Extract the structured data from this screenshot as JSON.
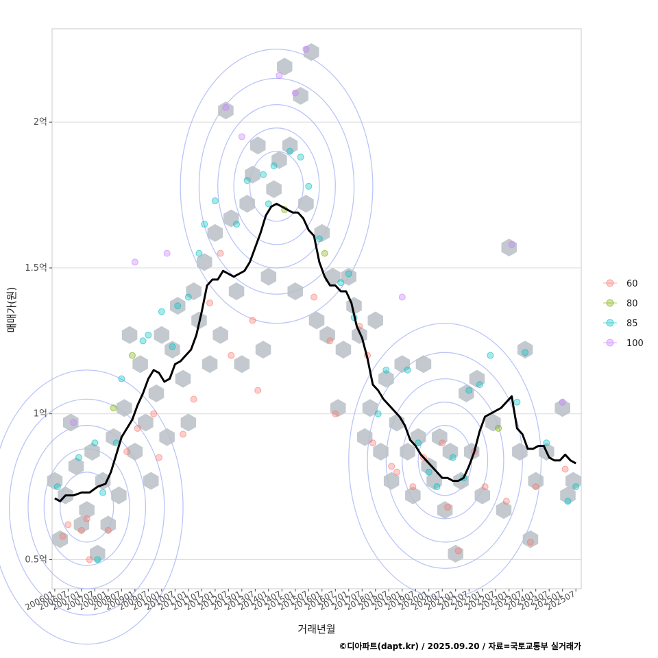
{
  "chart_data": {
    "type": "scatter",
    "xlabel": "거래년월",
    "ylabel": "매매가(원)",
    "caption": "©디아파트(dapt.kr) / 2025.09.20 / 자료=국토교통부 실거래가",
    "x_ticks": [
      "200601",
      "200607",
      "200701",
      "200707",
      "200801",
      "200807",
      "200901",
      "200907",
      "201001",
      "201007",
      "201101",
      "201107",
      "201201",
      "201207",
      "201301",
      "201307",
      "201401",
      "201407",
      "201501",
      "201507",
      "201601",
      "201607",
      "201701",
      "201707",
      "201801",
      "201807",
      "201901",
      "201907",
      "202001",
      "202007",
      "202101",
      "202107",
      "202201",
      "202207",
      "202301",
      "202307",
      "202401",
      "202407",
      "202501",
      "202507"
    ],
    "y_ticks": [
      {
        "value": 0.5,
        "label": "0.5억"
      },
      {
        "value": 1.0,
        "label": "1억"
      },
      {
        "value": 1.5,
        "label": "1.5억"
      },
      {
        "value": 2.0,
        "label": "2억"
      }
    ],
    "y_unit": "억원",
    "xlim": [
      2005.9,
      2025.7
    ],
    "ylim": [
      0.4,
      2.32
    ],
    "grid": true,
    "legend": {
      "position": "right",
      "entries": [
        {
          "label": "60",
          "color": "#F8766D"
        },
        {
          "label": "80",
          "color": "#7CAE00"
        },
        {
          "label": "85",
          "color": "#00BFC4"
        },
        {
          "label": "100",
          "color": "#C77CFF"
        }
      ]
    },
    "moving_average_line": {
      "color": "#000000",
      "points": [
        [
          2006.0,
          0.71
        ],
        [
          2006.2,
          0.7
        ],
        [
          2006.4,
          0.72
        ],
        [
          2006.7,
          0.72
        ],
        [
          2007.0,
          0.73
        ],
        [
          2007.3,
          0.73
        ],
        [
          2007.6,
          0.75
        ],
        [
          2007.9,
          0.76
        ],
        [
          2008.1,
          0.8
        ],
        [
          2008.3,
          0.86
        ],
        [
          2008.5,
          0.92
        ],
        [
          2008.7,
          0.95
        ],
        [
          2008.9,
          0.98
        ],
        [
          2009.1,
          1.03
        ],
        [
          2009.3,
          1.07
        ],
        [
          2009.5,
          1.12
        ],
        [
          2009.7,
          1.15
        ],
        [
          2009.9,
          1.14
        ],
        [
          2010.1,
          1.11
        ],
        [
          2010.3,
          1.12
        ],
        [
          2010.5,
          1.17
        ],
        [
          2010.7,
          1.18
        ],
        [
          2010.9,
          1.2
        ],
        [
          2011.1,
          1.22
        ],
        [
          2011.3,
          1.27
        ],
        [
          2011.5,
          1.35
        ],
        [
          2011.7,
          1.44
        ],
        [
          2011.9,
          1.46
        ],
        [
          2012.1,
          1.46
        ],
        [
          2012.3,
          1.49
        ],
        [
          2012.5,
          1.48
        ],
        [
          2012.7,
          1.47
        ],
        [
          2012.9,
          1.48
        ],
        [
          2013.1,
          1.49
        ],
        [
          2013.3,
          1.52
        ],
        [
          2013.5,
          1.57
        ],
        [
          2013.7,
          1.62
        ],
        [
          2013.9,
          1.68
        ],
        [
          2014.1,
          1.71
        ],
        [
          2014.3,
          1.72
        ],
        [
          2014.5,
          1.71
        ],
        [
          2014.7,
          1.7
        ],
        [
          2014.9,
          1.69
        ],
        [
          2015.1,
          1.69
        ],
        [
          2015.3,
          1.67
        ],
        [
          2015.5,
          1.63
        ],
        [
          2015.7,
          1.61
        ],
        [
          2015.9,
          1.52
        ],
        [
          2016.1,
          1.47
        ],
        [
          2016.3,
          1.44
        ],
        [
          2016.5,
          1.44
        ],
        [
          2016.7,
          1.42
        ],
        [
          2016.9,
          1.42
        ],
        [
          2017.1,
          1.38
        ],
        [
          2017.3,
          1.3
        ],
        [
          2017.5,
          1.26
        ],
        [
          2017.7,
          1.19
        ],
        [
          2017.9,
          1.1
        ],
        [
          2018.1,
          1.08
        ],
        [
          2018.3,
          1.05
        ],
        [
          2018.5,
          1.03
        ],
        [
          2018.7,
          1.01
        ],
        [
          2018.9,
          0.99
        ],
        [
          2019.1,
          0.96
        ],
        [
          2019.3,
          0.91
        ],
        [
          2019.5,
          0.89
        ],
        [
          2019.7,
          0.86
        ],
        [
          2019.9,
          0.84
        ],
        [
          2020.1,
          0.82
        ],
        [
          2020.3,
          0.8
        ],
        [
          2020.5,
          0.78
        ],
        [
          2020.7,
          0.78
        ],
        [
          2020.9,
          0.77
        ],
        [
          2021.1,
          0.77
        ],
        [
          2021.3,
          0.78
        ],
        [
          2021.5,
          0.82
        ],
        [
          2021.7,
          0.87
        ],
        [
          2021.9,
          0.94
        ],
        [
          2022.1,
          0.99
        ],
        [
          2022.3,
          1.0
        ],
        [
          2022.5,
          1.01
        ],
        [
          2022.7,
          1.02
        ],
        [
          2022.9,
          1.04
        ],
        [
          2023.1,
          1.06
        ],
        [
          2023.3,
          0.95
        ],
        [
          2023.5,
          0.93
        ],
        [
          2023.7,
          0.88
        ],
        [
          2023.9,
          0.88
        ],
        [
          2024.1,
          0.89
        ],
        [
          2024.3,
          0.89
        ],
        [
          2024.5,
          0.85
        ],
        [
          2024.7,
          0.84
        ],
        [
          2024.9,
          0.84
        ],
        [
          2025.1,
          0.86
        ],
        [
          2025.3,
          0.84
        ],
        [
          2025.5,
          0.83
        ]
      ]
    },
    "hexbin_centers": [
      [
        2006.0,
        0.77
      ],
      [
        2006.2,
        0.57
      ],
      [
        2006.4,
        0.72
      ],
      [
        2006.6,
        0.97
      ],
      [
        2006.8,
        0.82
      ],
      [
        2007.0,
        0.62
      ],
      [
        2007.2,
        0.67
      ],
      [
        2007.4,
        0.87
      ],
      [
        2007.6,
        0.52
      ],
      [
        2007.8,
        0.77
      ],
      [
        2008.0,
        0.62
      ],
      [
        2008.2,
        0.92
      ],
      [
        2008.4,
        0.72
      ],
      [
        2008.6,
        1.02
      ],
      [
        2008.8,
        1.27
      ],
      [
        2009.0,
        0.87
      ],
      [
        2009.2,
        1.17
      ],
      [
        2009.4,
        0.97
      ],
      [
        2009.6,
        0.77
      ],
      [
        2009.8,
        1.07
      ],
      [
        2010.0,
        1.27
      ],
      [
        2010.2,
        0.92
      ],
      [
        2010.4,
        1.22
      ],
      [
        2010.6,
        1.37
      ],
      [
        2010.8,
        1.12
      ],
      [
        2011.0,
        0.97
      ],
      [
        2011.2,
        1.42
      ],
      [
        2011.4,
        1.32
      ],
      [
        2011.6,
        1.52
      ],
      [
        2011.8,
        1.17
      ],
      [
        2012.0,
        1.62
      ],
      [
        2012.2,
        1.27
      ],
      [
        2012.4,
        2.04
      ],
      [
        2012.6,
        1.67
      ],
      [
        2012.8,
        1.42
      ],
      [
        2013.0,
        1.17
      ],
      [
        2013.2,
        1.72
      ],
      [
        2013.4,
        1.82
      ],
      [
        2013.6,
        1.92
      ],
      [
        2013.8,
        1.22
      ],
      [
        2014.0,
        1.47
      ],
      [
        2014.2,
        1.77
      ],
      [
        2014.4,
        1.87
      ],
      [
        2014.6,
        2.19
      ],
      [
        2014.8,
        1.92
      ],
      [
        2015.0,
        1.42
      ],
      [
        2015.2,
        2.09
      ],
      [
        2015.4,
        1.72
      ],
      [
        2015.6,
        2.24
      ],
      [
        2015.8,
        1.32
      ],
      [
        2016.0,
        1.62
      ],
      [
        2016.2,
        1.27
      ],
      [
        2016.4,
        1.47
      ],
      [
        2016.6,
        1.02
      ],
      [
        2016.8,
        1.22
      ],
      [
        2017.0,
        1.47
      ],
      [
        2017.2,
        1.37
      ],
      [
        2017.4,
        1.27
      ],
      [
        2017.6,
        0.92
      ],
      [
        2017.8,
        1.02
      ],
      [
        2018.0,
        1.32
      ],
      [
        2018.2,
        0.87
      ],
      [
        2018.4,
        1.12
      ],
      [
        2018.6,
        0.77
      ],
      [
        2018.8,
        0.97
      ],
      [
        2019.0,
        1.17
      ],
      [
        2019.2,
        0.87
      ],
      [
        2019.4,
        0.72
      ],
      [
        2019.6,
        0.92
      ],
      [
        2019.8,
        1.17
      ],
      [
        2020.0,
        0.82
      ],
      [
        2020.2,
        0.77
      ],
      [
        2020.4,
        0.92
      ],
      [
        2020.6,
        0.67
      ],
      [
        2020.8,
        0.87
      ],
      [
        2021.0,
        0.52
      ],
      [
        2021.2,
        0.77
      ],
      [
        2021.4,
        1.07
      ],
      [
        2021.6,
        0.87
      ],
      [
        2021.8,
        1.12
      ],
      [
        2022.0,
        0.72
      ],
      [
        2022.4,
        0.97
      ],
      [
        2022.8,
        0.67
      ],
      [
        2023.0,
        1.57
      ],
      [
        2023.4,
        0.87
      ],
      [
        2023.6,
        1.22
      ],
      [
        2023.8,
        0.57
      ],
      [
        2024.0,
        0.77
      ],
      [
        2024.4,
        0.87
      ],
      [
        2025.0,
        1.02
      ],
      [
        2025.2,
        0.72
      ],
      [
        2025.4,
        0.77
      ]
    ],
    "sample_points": [
      {
        "x": 2006.1,
        "y": 0.75,
        "g": "85"
      },
      {
        "x": 2006.3,
        "y": 0.58,
        "g": "60"
      },
      {
        "x": 2006.5,
        "y": 0.62,
        "g": "60"
      },
      {
        "x": 2006.7,
        "y": 0.97,
        "g": "100"
      },
      {
        "x": 2006.9,
        "y": 0.85,
        "g": "85"
      },
      {
        "x": 2007.0,
        "y": 0.6,
        "g": "60"
      },
      {
        "x": 2007.2,
        "y": 0.64,
        "g": "60"
      },
      {
        "x": 2007.3,
        "y": 0.5,
        "g": "60"
      },
      {
        "x": 2007.5,
        "y": 0.9,
        "g": "85"
      },
      {
        "x": 2007.6,
        "y": 0.5,
        "g": "85"
      },
      {
        "x": 2007.8,
        "y": 0.73,
        "g": "85"
      },
      {
        "x": 2008.0,
        "y": 0.6,
        "g": "60"
      },
      {
        "x": 2008.2,
        "y": 1.02,
        "g": "80"
      },
      {
        "x": 2008.3,
        "y": 0.9,
        "g": "85"
      },
      {
        "x": 2008.5,
        "y": 1.12,
        "g": "85"
      },
      {
        "x": 2008.7,
        "y": 0.87,
        "g": "60"
      },
      {
        "x": 2008.9,
        "y": 1.2,
        "g": "80"
      },
      {
        "x": 2009.0,
        "y": 1.52,
        "g": "100"
      },
      {
        "x": 2009.1,
        "y": 0.95,
        "g": "60"
      },
      {
        "x": 2009.3,
        "y": 1.25,
        "g": "85"
      },
      {
        "x": 2009.5,
        "y": 1.27,
        "g": "85"
      },
      {
        "x": 2009.7,
        "y": 1.0,
        "g": "60"
      },
      {
        "x": 2009.9,
        "y": 0.85,
        "g": "60"
      },
      {
        "x": 2010.0,
        "y": 1.35,
        "g": "85"
      },
      {
        "x": 2010.2,
        "y": 1.55,
        "g": "100"
      },
      {
        "x": 2010.4,
        "y": 1.23,
        "g": "85"
      },
      {
        "x": 2010.6,
        "y": 1.37,
        "g": "85"
      },
      {
        "x": 2010.8,
        "y": 0.93,
        "g": "60"
      },
      {
        "x": 2011.0,
        "y": 1.4,
        "g": "85"
      },
      {
        "x": 2011.2,
        "y": 1.05,
        "g": "60"
      },
      {
        "x": 2011.4,
        "y": 1.55,
        "g": "85"
      },
      {
        "x": 2011.6,
        "y": 1.65,
        "g": "85"
      },
      {
        "x": 2011.8,
        "y": 1.38,
        "g": "60"
      },
      {
        "x": 2012.0,
        "y": 1.73,
        "g": "85"
      },
      {
        "x": 2012.2,
        "y": 1.55,
        "g": "60"
      },
      {
        "x": 2012.4,
        "y": 2.05,
        "g": "100"
      },
      {
        "x": 2012.6,
        "y": 1.2,
        "g": "60"
      },
      {
        "x": 2012.8,
        "y": 1.65,
        "g": "85"
      },
      {
        "x": 2013.0,
        "y": 1.95,
        "g": "100"
      },
      {
        "x": 2013.2,
        "y": 1.8,
        "g": "85"
      },
      {
        "x": 2013.4,
        "y": 1.32,
        "g": "60"
      },
      {
        "x": 2013.6,
        "y": 1.08,
        "g": "60"
      },
      {
        "x": 2013.8,
        "y": 1.82,
        "g": "85"
      },
      {
        "x": 2014.0,
        "y": 1.72,
        "g": "85"
      },
      {
        "x": 2014.2,
        "y": 1.85,
        "g": "85"
      },
      {
        "x": 2014.4,
        "y": 2.16,
        "g": "100"
      },
      {
        "x": 2014.6,
        "y": 1.7,
        "g": "80"
      },
      {
        "x": 2014.8,
        "y": 1.9,
        "g": "85"
      },
      {
        "x": 2015.0,
        "y": 2.1,
        "g": "100"
      },
      {
        "x": 2015.2,
        "y": 1.88,
        "g": "85"
      },
      {
        "x": 2015.4,
        "y": 2.25,
        "g": "100"
      },
      {
        "x": 2015.5,
        "y": 1.78,
        "g": "85"
      },
      {
        "x": 2015.7,
        "y": 1.4,
        "g": "60"
      },
      {
        "x": 2015.9,
        "y": 1.6,
        "g": "85"
      },
      {
        "x": 2016.1,
        "y": 1.55,
        "g": "80"
      },
      {
        "x": 2016.3,
        "y": 1.25,
        "g": "60"
      },
      {
        "x": 2016.5,
        "y": 1.0,
        "g": "60"
      },
      {
        "x": 2016.7,
        "y": 1.45,
        "g": "85"
      },
      {
        "x": 2017.0,
        "y": 1.48,
        "g": "85"
      },
      {
        "x": 2017.2,
        "y": 1.33,
        "g": "85"
      },
      {
        "x": 2017.4,
        "y": 1.3,
        "g": "60"
      },
      {
        "x": 2017.7,
        "y": 1.2,
        "g": "60"
      },
      {
        "x": 2017.9,
        "y": 0.9,
        "g": "60"
      },
      {
        "x": 2018.1,
        "y": 1.0,
        "g": "85"
      },
      {
        "x": 2018.4,
        "y": 1.15,
        "g": "85"
      },
      {
        "x": 2018.6,
        "y": 0.82,
        "g": "60"
      },
      {
        "x": 2018.8,
        "y": 0.8,
        "g": "60"
      },
      {
        "x": 2019.0,
        "y": 1.4,
        "g": "100"
      },
      {
        "x": 2019.2,
        "y": 1.15,
        "g": "85"
      },
      {
        "x": 2019.4,
        "y": 0.75,
        "g": "60"
      },
      {
        "x": 2019.6,
        "y": 0.9,
        "g": "85"
      },
      {
        "x": 2019.8,
        "y": 0.85,
        "g": "60"
      },
      {
        "x": 2020.0,
        "y": 0.8,
        "g": "85"
      },
      {
        "x": 2020.3,
        "y": 0.75,
        "g": "85"
      },
      {
        "x": 2020.5,
        "y": 0.9,
        "g": "60"
      },
      {
        "x": 2020.7,
        "y": 0.68,
        "g": "60"
      },
      {
        "x": 2020.9,
        "y": 0.85,
        "g": "85"
      },
      {
        "x": 2021.1,
        "y": 0.53,
        "g": "60"
      },
      {
        "x": 2021.3,
        "y": 0.78,
        "g": "85"
      },
      {
        "x": 2021.5,
        "y": 1.08,
        "g": "85"
      },
      {
        "x": 2021.7,
        "y": 0.87,
        "g": "60"
      },
      {
        "x": 2021.9,
        "y": 1.1,
        "g": "85"
      },
      {
        "x": 2022.1,
        "y": 0.75,
        "g": "60"
      },
      {
        "x": 2022.3,
        "y": 1.2,
        "g": "85"
      },
      {
        "x": 2022.6,
        "y": 0.95,
        "g": "80"
      },
      {
        "x": 2022.9,
        "y": 0.7,
        "g": "60"
      },
      {
        "x": 2023.1,
        "y": 1.58,
        "g": "100"
      },
      {
        "x": 2023.3,
        "y": 1.04,
        "g": "85"
      },
      {
        "x": 2023.6,
        "y": 1.21,
        "g": "85"
      },
      {
        "x": 2023.8,
        "y": 0.56,
        "g": "60"
      },
      {
        "x": 2024.0,
        "y": 0.75,
        "g": "60"
      },
      {
        "x": 2024.4,
        "y": 0.9,
        "g": "85"
      },
      {
        "x": 2025.0,
        "y": 1.04,
        "g": "100"
      },
      {
        "x": 2025.1,
        "y": 0.81,
        "g": "60"
      },
      {
        "x": 2025.2,
        "y": 0.7,
        "g": "85"
      },
      {
        "x": 2025.5,
        "y": 0.75,
        "g": "85"
      }
    ],
    "density_peaks": [
      {
        "x": 2007.2,
        "y": 0.68
      },
      {
        "x": 2014.3,
        "y": 1.78
      },
      {
        "x": 2020.6,
        "y": 0.84
      }
    ]
  }
}
